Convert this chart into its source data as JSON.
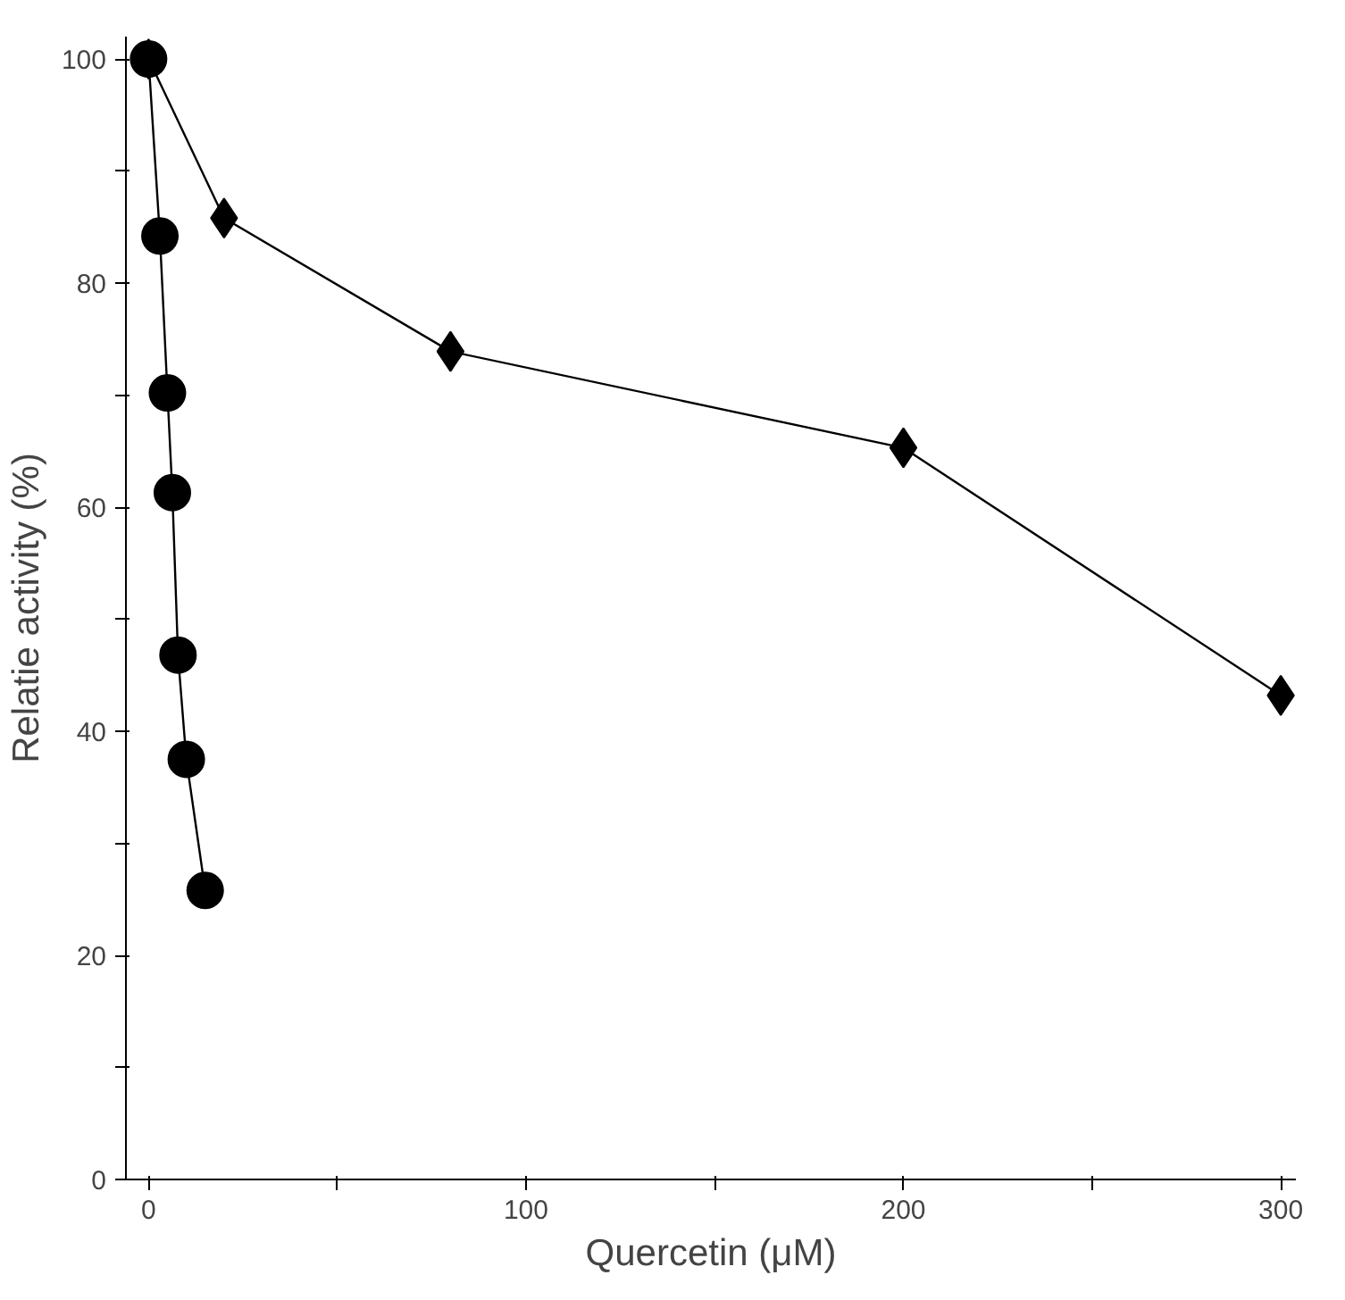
{
  "chart_data": {
    "type": "line",
    "xlabel": "Quercetin (μM)",
    "ylabel": "Relatie activity (%)",
    "xlim": [
      -6,
      304
    ],
    "ylim": [
      0,
      102
    ],
    "xticks": [
      0,
      {
        "value": 50,
        "label": null
      },
      100,
      {
        "value": 150,
        "label": null
      },
      200,
      {
        "value": 250,
        "label": null
      },
      300
    ],
    "yticks": [
      0,
      {
        "value": 10,
        "label": null
      },
      20,
      {
        "value": 30,
        "label": null
      },
      40,
      {
        "value": 50,
        "label": null
      },
      60,
      {
        "value": 70,
        "label": null
      },
      80,
      {
        "value": 90,
        "label": null
      },
      100
    ],
    "grid": false,
    "line_style": "solid",
    "series": [
      {
        "color": "#000000",
        "marker": "diamond",
        "x": [
          0,
          20,
          80,
          200,
          300
        ],
        "values": [
          100,
          85.8,
          73.9,
          65.3,
          43.2
        ]
      },
      {
        "color": "#000000",
        "marker": "circle",
        "x": [
          0,
          3,
          5,
          6.3,
          7.8,
          10,
          15
        ],
        "values": [
          100,
          84.2,
          70.2,
          61.3,
          46.8,
          37.5,
          25.8
        ]
      }
    ]
  }
}
